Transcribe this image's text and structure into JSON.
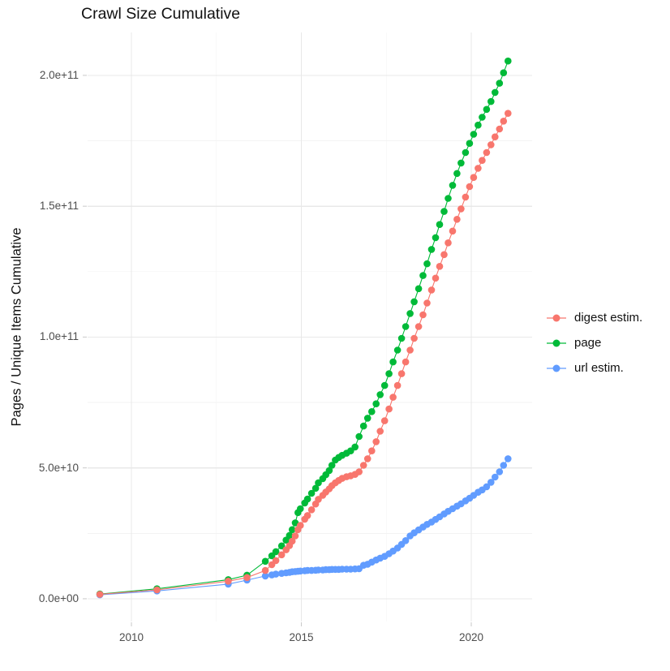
{
  "chart_data": {
    "type": "line",
    "title": "Crawl Size Cumulative",
    "ylabel": "Pages / Unique Items Cumulative",
    "xlabel": "",
    "values_unit": "billions of items (1e9); y-axis shown in scientific notation",
    "grid": "on",
    "legend_position": "right",
    "x_domain": [
      2008.71,
      2021.79
    ],
    "y_domain": [
      -8.7,
      216.4
    ],
    "x_tick_values": [
      2010,
      2015,
      2020
    ],
    "x_tick_labels": [
      "2010",
      "2015",
      "2020"
    ],
    "x_minor_gridlines": [
      2012.5,
      2017.5
    ],
    "y_tick_values": [
      0,
      50,
      100,
      150,
      200
    ],
    "y_tick_labels": [
      "0.0e+00",
      "5.0e+10",
      "1.0e+11",
      "1.5e+11",
      "2.0e+11"
    ],
    "y_minor_gridlines": [
      25,
      75,
      125,
      175
    ],
    "colors": {
      "grid_major": "#e8e8e8",
      "grid_minor": "#f3f3f3",
      "tick_mark": "#c9c9c9",
      "tick_text": "#4d4d4d",
      "title_text": "#111111",
      "digest": "#F8766D",
      "page": "#00BA38",
      "url": "#619CFF"
    },
    "x": [
      2009.07,
      2010.75,
      2012.85,
      2013.4,
      2013.94,
      2014.13,
      2014.25,
      2014.42,
      2014.55,
      2014.65,
      2014.73,
      2014.82,
      2014.9,
      2014.97,
      2015.1,
      2015.18,
      2015.3,
      2015.42,
      2015.5,
      2015.63,
      2015.72,
      2015.82,
      2015.9,
      2016.0,
      2016.1,
      2016.2,
      2016.33,
      2016.45,
      2016.58,
      2016.7,
      2016.83,
      2016.95,
      2017.07,
      2017.2,
      2017.32,
      2017.45,
      2017.58,
      2017.7,
      2017.83,
      2017.95,
      2018.07,
      2018.2,
      2018.32,
      2018.45,
      2018.58,
      2018.7,
      2018.83,
      2018.95,
      2019.07,
      2019.2,
      2019.32,
      2019.45,
      2019.58,
      2019.7,
      2019.83,
      2019.95,
      2020.07,
      2020.2,
      2020.32,
      2020.45,
      2020.58,
      2020.7,
      2020.83,
      2020.95,
      2021.08
    ],
    "series": [
      {
        "id": "digest-estim",
        "name": "digest estim.",
        "color": "#F8766D",
        "values": [
          1.7,
          3.4,
          6.7,
          8.1,
          10.8,
          13.0,
          14.6,
          16.8,
          18.7,
          20.3,
          22.0,
          24.0,
          26.4,
          28.0,
          30.4,
          31.8,
          34.0,
          36.2,
          38.0,
          39.5,
          40.8,
          42.0,
          43.2,
          44.3,
          45.2,
          46.0,
          46.6,
          47.0,
          47.5,
          48.5,
          51.0,
          53.5,
          56.5,
          60.0,
          64.0,
          68.0,
          72.5,
          77.0,
          81.5,
          86.0,
          90.5,
          95.0,
          99.5,
          104.0,
          108.5,
          113.0,
          118.0,
          122.5,
          127.0,
          131.5,
          136.0,
          140.5,
          145.0,
          149.0,
          153.5,
          157.5,
          161.0,
          164.5,
          167.5,
          170.5,
          173.5,
          176.5,
          179.5,
          182.5,
          185.5
        ]
      },
      {
        "id": "page",
        "name": "page",
        "color": "#00BA38",
        "values": [
          1.8,
          3.8,
          7.3,
          9.0,
          14.3,
          16.4,
          18.0,
          20.2,
          22.4,
          24.2,
          26.4,
          29.0,
          32.9,
          34.4,
          36.6,
          38.1,
          40.3,
          42.2,
          44.3,
          45.9,
          47.4,
          49.0,
          51.0,
          53.0,
          54.0,
          54.8,
          55.6,
          56.5,
          58.0,
          62.0,
          66.0,
          69.0,
          71.5,
          74.5,
          78.0,
          81.5,
          86.0,
          90.5,
          95.0,
          99.5,
          104.0,
          109.0,
          113.5,
          118.5,
          123.5,
          128.0,
          133.5,
          138.0,
          143.0,
          148.0,
          153.0,
          158.0,
          162.5,
          166.5,
          170.5,
          174.0,
          177.5,
          181.0,
          184.0,
          187.0,
          190.0,
          193.5,
          197.0,
          201.0,
          205.5
        ]
      },
      {
        "id": "url-estim",
        "name": "url estim.",
        "color": "#619CFF",
        "values": [
          1.5,
          3.0,
          5.6,
          7.1,
          8.7,
          9.1,
          9.4,
          9.7,
          9.9,
          10.1,
          10.3,
          10.4,
          10.5,
          10.6,
          10.7,
          10.8,
          10.8,
          10.9,
          11.0,
          11.0,
          11.1,
          11.1,
          11.2,
          11.2,
          11.2,
          11.3,
          11.3,
          11.3,
          11.4,
          11.5,
          12.8,
          13.2,
          14.0,
          14.8,
          15.5,
          16.2,
          17.2,
          18.2,
          19.4,
          20.8,
          22.2,
          24.0,
          25.2,
          26.3,
          27.4,
          28.4,
          29.3,
          30.3,
          31.3,
          32.4,
          33.4,
          34.4,
          35.4,
          36.3,
          37.4,
          38.4,
          39.5,
          40.7,
          41.6,
          42.8,
          44.5,
          46.5,
          48.5,
          51.0,
          53.5
        ]
      }
    ]
  }
}
